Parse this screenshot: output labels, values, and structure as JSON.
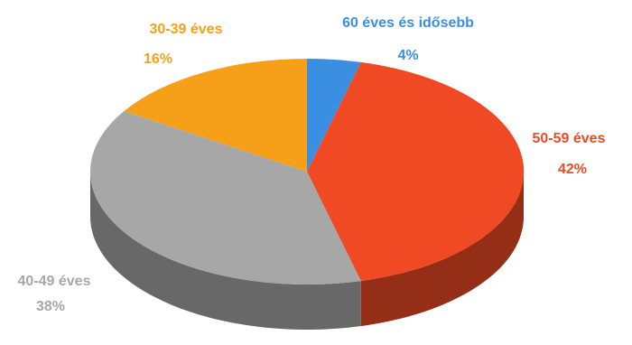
{
  "chart_data": {
    "type": "pie",
    "title": "",
    "slices": [
      {
        "label": "60 éves és idősebb",
        "value": 4,
        "value_text": "4%",
        "color": "#3b8fe3"
      },
      {
        "label": "50-59 éves",
        "value": 42,
        "value_text": "42%",
        "color": "#f04a25"
      },
      {
        "label": "40-49 éves",
        "value": 38,
        "value_text": "38%",
        "color": "#a7a7a7"
      },
      {
        "label": "30-39 éves",
        "value": 16,
        "value_text": "16%",
        "color": "#f6a01a"
      }
    ],
    "label_placement": "outside",
    "legend": "none"
  }
}
